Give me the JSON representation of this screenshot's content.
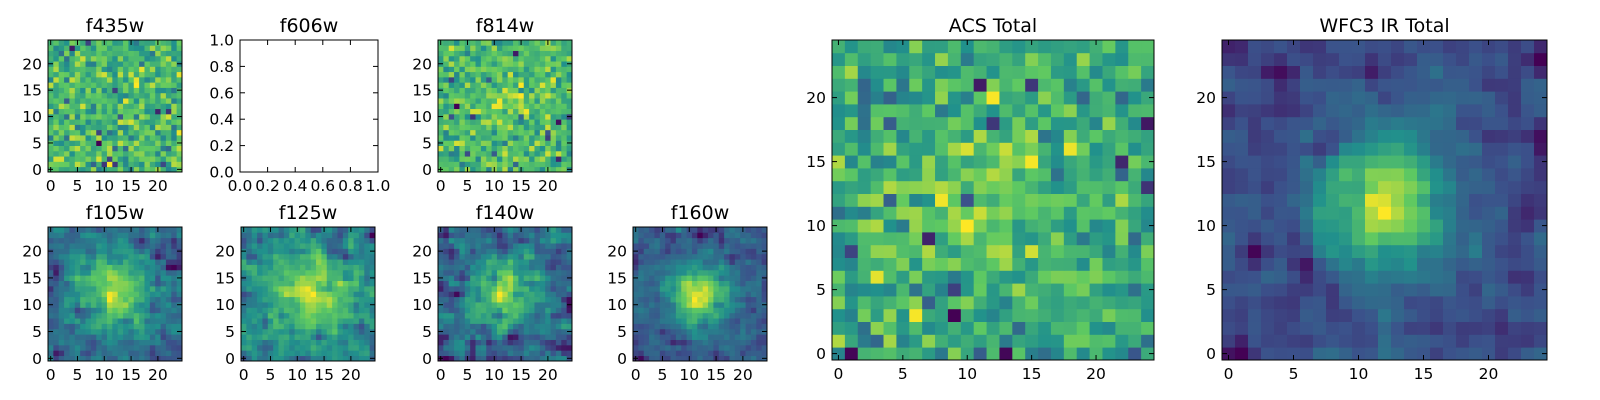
{
  "figure": {
    "background": "#ffffff",
    "colormap": "viridis",
    "colormap_stops": [
      "#440154",
      "#3b528b",
      "#21918c",
      "#5ec962",
      "#fde725"
    ]
  },
  "chart_data": [
    {
      "id": "f435w",
      "type": "heatmap",
      "title": "f435w",
      "grid_size": [
        25,
        25
      ],
      "xlim": [
        -0.5,
        24.5
      ],
      "ylim": [
        -0.5,
        24.5
      ],
      "xticks": [
        "0",
        "5",
        "10",
        "15",
        "20"
      ],
      "yticks": [
        "0",
        "5",
        "10",
        "15",
        "20"
      ],
      "description_of_values": "noise-like pixel field, mostly high (green-yellow) with scattered low pixels",
      "seed": 17,
      "center_peak": 0.0,
      "peak_sigma": 4.0,
      "noise": 1.0,
      "baseline": 0.6,
      "smooth": 0
    },
    {
      "id": "f606w",
      "type": "empty",
      "title": "f606w",
      "xlim": [
        0.0,
        1.0
      ],
      "ylim": [
        0.0,
        1.0
      ],
      "xticks": [
        "0.0",
        "0.2",
        "0.4",
        "0.6",
        "0.8",
        "1.0"
      ],
      "yticks": [
        "0.0",
        "0.2",
        "0.4",
        "0.6",
        "0.8",
        "1.0"
      ]
    },
    {
      "id": "f814w",
      "type": "heatmap",
      "title": "f814w",
      "grid_size": [
        25,
        25
      ],
      "xlim": [
        -0.5,
        24.5
      ],
      "ylim": [
        -0.5,
        24.5
      ],
      "xticks": [
        "0",
        "5",
        "10",
        "15",
        "20"
      ],
      "yticks": [
        "0",
        "5",
        "10",
        "15",
        "20"
      ],
      "seed": 29,
      "center_peak": 0.25,
      "peak_sigma": 4.0,
      "noise": 1.0,
      "baseline": 0.55,
      "smooth": 0
    },
    {
      "id": "f105w",
      "type": "heatmap",
      "title": "f105w",
      "grid_size": [
        25,
        25
      ],
      "xlim": [
        -0.5,
        24.5
      ],
      "ylim": [
        -0.5,
        24.5
      ],
      "xticks": [
        "0",
        "5",
        "10",
        "15",
        "20"
      ],
      "yticks": [
        "0",
        "5",
        "10",
        "15",
        "20"
      ],
      "seed": 41,
      "center_peak": 0.7,
      "peak_sigma": 5.0,
      "noise": 0.9,
      "baseline": 0.45,
      "smooth": 1
    },
    {
      "id": "f125w",
      "type": "heatmap",
      "title": "f125w",
      "grid_size": [
        25,
        25
      ],
      "xlim": [
        -0.5,
        24.5
      ],
      "ylim": [
        -0.5,
        24.5
      ],
      "xticks": [
        "0",
        "5",
        "10",
        "15",
        "20"
      ],
      "yticks": [
        "0",
        "5",
        "10",
        "15",
        "20"
      ],
      "seed": 53,
      "center_peak": 0.6,
      "peak_sigma": 5.0,
      "noise": 1.0,
      "baseline": 0.45,
      "smooth": 1
    },
    {
      "id": "f140w",
      "type": "heatmap",
      "title": "f140w",
      "grid_size": [
        25,
        25
      ],
      "xlim": [
        -0.5,
        24.5
      ],
      "ylim": [
        -0.5,
        24.5
      ],
      "xticks": [
        "0",
        "5",
        "10",
        "15",
        "20"
      ],
      "yticks": [
        "0",
        "5",
        "10",
        "15",
        "20"
      ],
      "seed": 67,
      "center_peak": 0.7,
      "peak_sigma": 4.5,
      "noise": 1.0,
      "baseline": 0.4,
      "smooth": 1
    },
    {
      "id": "f160w",
      "type": "heatmap",
      "title": "f160w",
      "grid_size": [
        25,
        25
      ],
      "xlim": [
        -0.5,
        24.5
      ],
      "ylim": [
        -0.5,
        24.5
      ],
      "xticks": [
        "0",
        "5",
        "10",
        "15",
        "20"
      ],
      "yticks": [
        "0",
        "5",
        "10",
        "15",
        "20"
      ],
      "seed": 79,
      "center_peak": 1.0,
      "peak_sigma": 3.5,
      "noise": 0.8,
      "baseline": 0.35,
      "smooth": 1
    },
    {
      "id": "acs_total",
      "type": "heatmap",
      "title": "ACS Total",
      "grid_size": [
        25,
        25
      ],
      "xlim": [
        -0.5,
        24.5
      ],
      "ylim": [
        -0.5,
        24.5
      ],
      "xticks": [
        "0",
        "5",
        "10",
        "15",
        "20"
      ],
      "yticks": [
        "0",
        "5",
        "10",
        "15",
        "20"
      ],
      "seed": 91,
      "center_peak": 0.3,
      "peak_sigma": 5.0,
      "noise": 1.0,
      "baseline": 0.6,
      "smooth": 0
    },
    {
      "id": "wfc3_ir_total",
      "type": "heatmap",
      "title": "WFC3 IR Total",
      "grid_size": [
        25,
        25
      ],
      "xlim": [
        -0.5,
        24.5
      ],
      "ylim": [
        -0.5,
        24.5
      ],
      "xticks": [
        "0",
        "5",
        "10",
        "15",
        "20"
      ],
      "yticks": [
        "0",
        "5",
        "10",
        "15",
        "20"
      ],
      "seed": 103,
      "center_peak": 1.2,
      "peak_sigma": 3.5,
      "noise": 0.7,
      "baseline": 0.4,
      "smooth": 1
    }
  ]
}
